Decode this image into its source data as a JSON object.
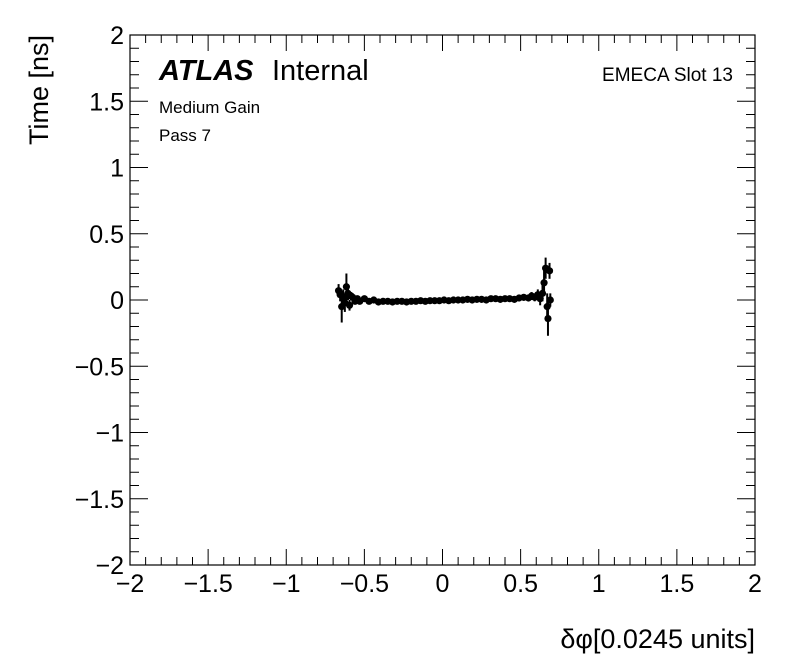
{
  "chart_data": {
    "type": "scatter",
    "title": "",
    "xlabel": "δφ[0.0245 units]",
    "ylabel": "Time [ns]",
    "xlim": [
      -2,
      2
    ],
    "ylim": [
      -2,
      2
    ],
    "x_ticks": [
      "−2",
      "−1.5",
      "−1",
      "−0.5",
      "0",
      "0.5",
      "1",
      "1.5",
      "2"
    ],
    "y_ticks": [
      "−2",
      "−1.5",
      "−1",
      "−0.5",
      "0",
      "0.5",
      "1",
      "1.5",
      "2"
    ],
    "grid": false,
    "annotations": {
      "atlas": "ATLAS",
      "internal": "Internal",
      "gain": "Medium Gain",
      "pass": "Pass 7",
      "slot": "EMECA Slot 13"
    },
    "series": [
      {
        "points": [
          {
            "x": -0.665,
            "y": 0.07,
            "err": 0.05
          },
          {
            "x": -0.655,
            "y": 0.04,
            "err": 0.05
          },
          {
            "x": -0.645,
            "y": -0.05,
            "err": 0.12
          },
          {
            "x": -0.635,
            "y": 0.02,
            "err": 0.06
          },
          {
            "x": -0.625,
            "y": -0.02,
            "err": 0.07
          },
          {
            "x": -0.615,
            "y": 0.1,
            "err": 0.1
          },
          {
            "x": -0.605,
            "y": 0.05,
            "err": 0.05
          },
          {
            "x": -0.595,
            "y": -0.04,
            "err": 0.04
          },
          {
            "x": -0.585,
            "y": 0.03,
            "err": 0.03
          },
          {
            "x": -0.575,
            "y": 0.02,
            "err": 0.03
          },
          {
            "x": -0.56,
            "y": -0.01,
            "err": 0.02
          },
          {
            "x": -0.545,
            "y": 0.01,
            "err": 0.02
          },
          {
            "x": -0.53,
            "y": -0.01,
            "err": 0.02
          },
          {
            "x": -0.5,
            "y": 0.01,
            "err": 0.015
          },
          {
            "x": -0.47,
            "y": -0.01,
            "err": 0.015
          },
          {
            "x": -0.44,
            "y": 0.0,
            "err": 0.015
          },
          {
            "x": -0.41,
            "y": -0.015,
            "err": 0.012
          },
          {
            "x": -0.38,
            "y": -0.01,
            "err": 0.012
          },
          {
            "x": -0.35,
            "y": -0.01,
            "err": 0.012
          },
          {
            "x": -0.32,
            "y": -0.015,
            "err": 0.012
          },
          {
            "x": -0.29,
            "y": -0.01,
            "err": 0.01
          },
          {
            "x": -0.26,
            "y": -0.01,
            "err": 0.01
          },
          {
            "x": -0.23,
            "y": -0.015,
            "err": 0.01
          },
          {
            "x": -0.2,
            "y": -0.01,
            "err": 0.01
          },
          {
            "x": -0.17,
            "y": -0.01,
            "err": 0.01
          },
          {
            "x": -0.14,
            "y": -0.005,
            "err": 0.01
          },
          {
            "x": -0.11,
            "y": -0.01,
            "err": 0.01
          },
          {
            "x": -0.08,
            "y": -0.005,
            "err": 0.01
          },
          {
            "x": -0.05,
            "y": -0.005,
            "err": 0.01
          },
          {
            "x": -0.02,
            "y": -0.005,
            "err": 0.01
          },
          {
            "x": 0.01,
            "y": 0.0,
            "err": 0.01
          },
          {
            "x": 0.04,
            "y": -0.005,
            "err": 0.01
          },
          {
            "x": 0.07,
            "y": 0.0,
            "err": 0.01
          },
          {
            "x": 0.1,
            "y": 0.0,
            "err": 0.01
          },
          {
            "x": 0.13,
            "y": 0.0,
            "err": 0.01
          },
          {
            "x": 0.16,
            "y": 0.005,
            "err": 0.01
          },
          {
            "x": 0.19,
            "y": 0.0,
            "err": 0.01
          },
          {
            "x": 0.22,
            "y": 0.005,
            "err": 0.01
          },
          {
            "x": 0.25,
            "y": 0.005,
            "err": 0.012
          },
          {
            "x": 0.28,
            "y": 0.0,
            "err": 0.012
          },
          {
            "x": 0.31,
            "y": 0.01,
            "err": 0.012
          },
          {
            "x": 0.34,
            "y": 0.01,
            "err": 0.012
          },
          {
            "x": 0.37,
            "y": 0.005,
            "err": 0.012
          },
          {
            "x": 0.4,
            "y": 0.01,
            "err": 0.015
          },
          {
            "x": 0.43,
            "y": 0.01,
            "err": 0.015
          },
          {
            "x": 0.46,
            "y": 0.005,
            "err": 0.015
          },
          {
            "x": 0.49,
            "y": 0.015,
            "err": 0.015
          },
          {
            "x": 0.52,
            "y": 0.02,
            "err": 0.02
          },
          {
            "x": 0.55,
            "y": 0.015,
            "err": 0.02
          },
          {
            "x": 0.57,
            "y": 0.03,
            "err": 0.03
          },
          {
            "x": 0.59,
            "y": 0.02,
            "err": 0.03
          },
          {
            "x": 0.61,
            "y": 0.04,
            "err": 0.04
          },
          {
            "x": 0.625,
            "y": 0.01,
            "err": 0.05
          },
          {
            "x": 0.64,
            "y": 0.05,
            "err": 0.06
          },
          {
            "x": 0.65,
            "y": 0.13,
            "err": 0.1
          },
          {
            "x": 0.66,
            "y": 0.24,
            "err": 0.08
          },
          {
            "x": 0.67,
            "y": -0.05,
            "err": 0.1
          },
          {
            "x": 0.675,
            "y": -0.14,
            "err": 0.13
          },
          {
            "x": 0.685,
            "y": 0.22,
            "err": 0.06
          },
          {
            "x": 0.69,
            "y": 0.0,
            "err": 0.05
          }
        ]
      }
    ]
  }
}
